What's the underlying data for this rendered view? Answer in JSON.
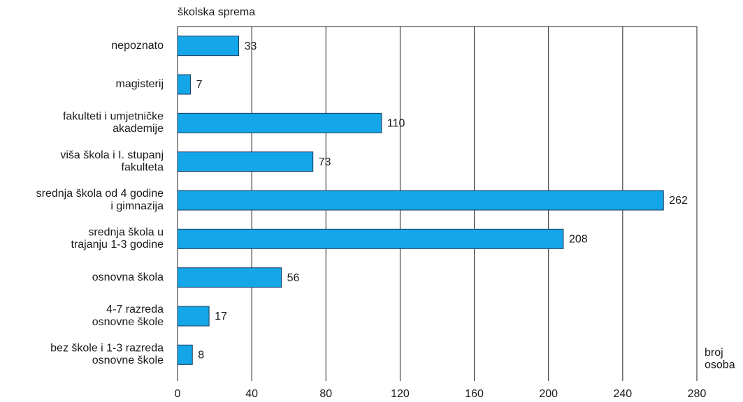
{
  "chart_data": {
    "type": "bar",
    "orientation": "horizontal",
    "ylabel": "školska sprema",
    "xlabel": "broj\nosoba",
    "categories": [
      "nepoznato",
      "magisterij",
      "fakulteti i umjetničke\nakademije",
      "viša škola i I. stupanj\nfakulteta",
      "srednja škola od 4 godine\ni gimnazija",
      "srednja škola u\ntrajanju 1-3 godine",
      "osnovna škola",
      "4-7 razreda\nosnovne škole",
      "bez škole i 1-3 razreda\nosnovne škole"
    ],
    "values": [
      33,
      7,
      110,
      73,
      262,
      208,
      56,
      17,
      8
    ],
    "color": "#14a6e8",
    "xlim": [
      0,
      280
    ],
    "xticks": [
      0,
      40,
      80,
      120,
      160,
      200,
      240,
      280
    ],
    "grid": true
  }
}
